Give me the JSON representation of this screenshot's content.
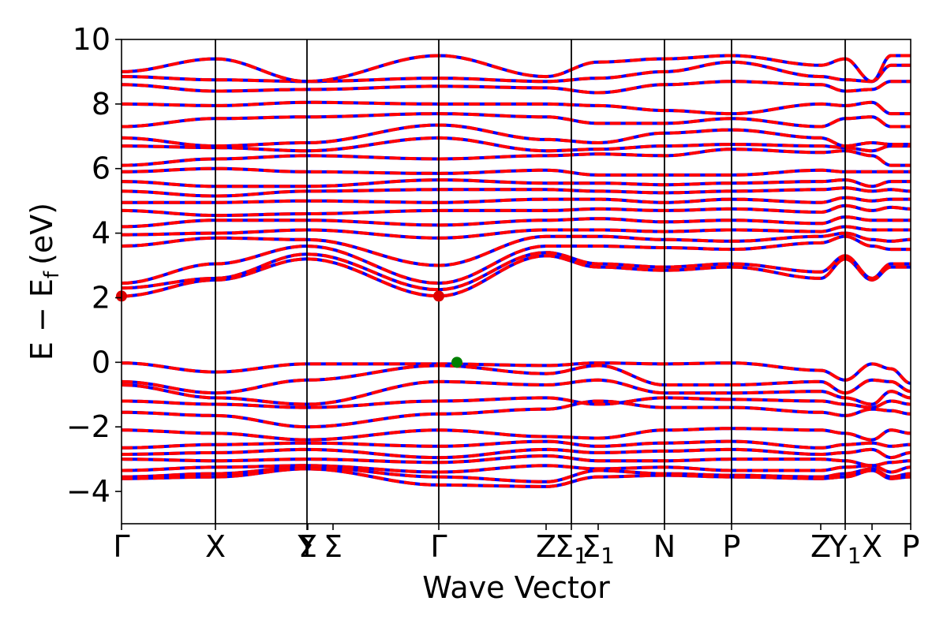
{
  "chart_data": {
    "type": "line",
    "xlabel": "Wave Vector",
    "ylabel": "E − E",
    "ylabel_sub": "f",
    "ylabel_unit": "(eV)",
    "ylim": [
      -5,
      10
    ],
    "y_ticks": [
      -4,
      -2,
      0,
      2,
      4,
      6,
      8,
      10
    ],
    "y_tick_labels": [
      "−4",
      "−2",
      "0",
      "2",
      "4",
      "6",
      "8",
      "10"
    ],
    "grid": false,
    "high_symmetry_path": [
      {
        "label": "Γ",
        "sub": "",
        "x": 0.0
      },
      {
        "label": "X",
        "sub": "",
        "x": 0.119
      },
      {
        "label": "Y",
        "sub": "",
        "x": 0.235
      },
      {
        "label": "Σ",
        "sub": "",
        "x": 0.236
      },
      {
        "label": "Σ",
        "sub": "",
        "x": 0.268
      },
      {
        "label": "Γ",
        "sub": "",
        "x": 0.402
      },
      {
        "label": "Z",
        "sub": "",
        "x": 0.538
      },
      {
        "label": "Σ",
        "sub": "1",
        "x": 0.57
      },
      {
        "label": "Σ",
        "sub": "1",
        "x": 0.604
      },
      {
        "label": "N",
        "sub": "",
        "x": 0.688
      },
      {
        "label": "P",
        "sub": "",
        "x": 0.773
      },
      {
        "label": "Z",
        "sub": "",
        "x": 0.886
      },
      {
        "label": "Y",
        "sub": "1",
        "x": 0.917
      },
      {
        "label": "X",
        "sub": "",
        "x": 0.951
      },
      {
        "label": "P",
        "sub": "",
        "x": 1.0
      }
    ],
    "vertical_lines_at": [
      0.119,
      0.235,
      0.402,
      0.57,
      0.688,
      0.773,
      0.917
    ],
    "segment_breaks": [
      0.917
    ],
    "series": [
      {
        "color": "#0000ff",
        "style": "solid"
      },
      {
        "color": "#ff0000",
        "style": "dashed"
      }
    ],
    "bands": {
      "valence_at_knots": [
        [
          -0.02,
          -0.3,
          -0.05,
          -0.05,
          -0.1,
          -0.02,
          -0.05,
          -0.02,
          -0.25,
          -0.55,
          -0.05,
          -0.2,
          -0.65
        ],
        [
          -0.6,
          -0.95,
          -0.55,
          -0.1,
          -0.35,
          -0.1,
          -0.7,
          -0.7,
          -0.6,
          -0.95,
          -0.55,
          -0.6,
          -0.9
        ],
        [
          -0.7,
          -1.1,
          -1.3,
          -0.6,
          -0.7,
          -0.55,
          -0.95,
          -0.95,
          -0.9,
          -1.1,
          -1.3,
          -0.9,
          -1.1
        ],
        [
          -1.2,
          -1.3,
          -1.4,
          -1.2,
          -1.1,
          -1.3,
          -1.1,
          -1.15,
          -1.2,
          -1.3,
          -1.4,
          -1.2,
          -1.3
        ],
        [
          -1.55,
          -1.65,
          -2.0,
          -1.6,
          -1.45,
          -1.2,
          -1.4,
          -1.4,
          -1.55,
          -1.65,
          -1.45,
          -1.5,
          -1.6
        ],
        [
          -2.1,
          -2.2,
          -2.4,
          -2.1,
          -2.3,
          -2.35,
          -2.1,
          -2.05,
          -2.1,
          -2.2,
          -2.4,
          -2.1,
          -2.2
        ],
        [
          -2.65,
          -2.55,
          -2.5,
          -2.6,
          -2.45,
          -2.6,
          -2.5,
          -2.45,
          -2.65,
          -2.55,
          -2.5,
          -2.6,
          -2.55
        ],
        [
          -2.85,
          -2.8,
          -2.7,
          -2.95,
          -2.7,
          -2.8,
          -2.75,
          -2.7,
          -2.85,
          -2.8,
          -2.7,
          -2.95,
          -2.8
        ],
        [
          -3.0,
          -3.05,
          -3.0,
          -3.1,
          -2.9,
          -3.05,
          -3.05,
          -3.0,
          -3.0,
          -3.05,
          -3.2,
          -3.1,
          -3.05
        ],
        [
          -3.35,
          -3.25,
          -3.2,
          -3.4,
          -3.2,
          -3.3,
          -3.25,
          -3.35,
          -3.35,
          -3.25,
          -3.2,
          -3.4,
          -3.25
        ],
        [
          -3.55,
          -3.45,
          -3.25,
          -3.55,
          -3.7,
          -3.35,
          -3.45,
          -3.5,
          -3.55,
          -3.45,
          -3.3,
          -3.55,
          -3.45
        ],
        [
          -3.6,
          -3.55,
          -3.3,
          -3.8,
          -3.85,
          -3.55,
          -3.5,
          -3.55,
          -3.6,
          -3.55,
          -3.35,
          -3.6,
          -3.55
        ]
      ],
      "conduction_at_knots": [
        [
          2.05,
          2.55,
          3.2,
          2.05,
          3.3,
          2.95,
          2.85,
          2.95,
          2.6,
          3.2,
          2.55,
          2.95,
          2.95
        ],
        [
          2.3,
          2.6,
          3.35,
          2.25,
          3.4,
          3.05,
          2.95,
          3.05,
          2.8,
          3.3,
          2.6,
          3.05,
          3.05
        ],
        [
          2.45,
          3.05,
          3.6,
          2.45,
          3.6,
          3.6,
          3.55,
          3.5,
          3.7,
          3.9,
          3.6,
          3.5,
          3.5
        ],
        [
          3.6,
          3.85,
          3.8,
          3.0,
          3.9,
          3.9,
          3.8,
          3.75,
          3.9,
          4.0,
          3.8,
          3.75,
          3.8
        ],
        [
          3.95,
          4.0,
          4.1,
          3.85,
          4.1,
          4.1,
          4.05,
          4.1,
          4.05,
          4.2,
          4.1,
          4.1,
          4.1
        ],
        [
          4.2,
          4.4,
          4.4,
          4.25,
          4.4,
          4.45,
          4.35,
          4.4,
          4.3,
          4.5,
          4.4,
          4.4,
          4.4
        ],
        [
          4.7,
          4.55,
          4.6,
          4.7,
          4.7,
          4.75,
          4.7,
          4.75,
          4.65,
          4.85,
          4.7,
          4.8,
          4.75
        ],
        [
          4.95,
          4.95,
          5.0,
          4.95,
          5.05,
          5.05,
          4.95,
          5.05,
          4.95,
          5.1,
          5.0,
          5.05,
          5.05
        ],
        [
          5.3,
          5.15,
          5.3,
          5.35,
          5.35,
          5.3,
          5.25,
          5.3,
          5.35,
          5.4,
          5.3,
          5.35,
          5.3
        ],
        [
          5.6,
          5.45,
          5.45,
          5.65,
          5.55,
          5.55,
          5.5,
          5.55,
          5.6,
          5.65,
          5.45,
          5.6,
          5.6
        ],
        [
          5.9,
          6.0,
          5.9,
          5.85,
          5.95,
          5.8,
          5.8,
          5.8,
          5.95,
          5.9,
          5.9,
          5.9,
          5.9
        ],
        [
          6.1,
          6.3,
          6.4,
          6.3,
          6.4,
          6.45,
          6.4,
          6.6,
          6.5,
          6.55,
          6.4,
          6.1,
          6.1
        ],
        [
          6.7,
          6.65,
          6.55,
          6.95,
          6.55,
          6.6,
          6.7,
          6.75,
          6.7,
          6.65,
          6.55,
          6.7,
          6.7
        ],
        [
          6.95,
          6.7,
          6.8,
          7.35,
          6.9,
          6.8,
          7.1,
          7.2,
          6.95,
          6.7,
          6.8,
          6.75,
          6.75
        ],
        [
          7.3,
          7.55,
          7.6,
          7.7,
          7.6,
          7.4,
          7.4,
          7.55,
          7.3,
          7.55,
          7.6,
          7.3,
          7.3
        ],
        [
          8.0,
          7.95,
          8.05,
          8.0,
          8.0,
          7.95,
          7.8,
          7.7,
          8.0,
          7.95,
          8.05,
          7.7,
          7.7
        ],
        [
          8.6,
          8.4,
          8.45,
          8.55,
          8.5,
          8.35,
          8.6,
          8.7,
          8.6,
          8.4,
          8.45,
          8.7,
          8.7
        ],
        [
          8.85,
          8.75,
          8.7,
          8.8,
          8.7,
          8.8,
          9.0,
          9.3,
          8.85,
          8.75,
          8.7,
          9.2,
          9.2
        ],
        [
          9.0,
          9.4,
          8.7,
          9.5,
          8.85,
          9.3,
          9.4,
          9.5,
          9.2,
          9.4,
          8.7,
          9.5,
          9.5
        ]
      ],
      "knot_x": [
        0.0,
        0.119,
        0.235,
        0.402,
        0.538,
        0.604,
        0.688,
        0.773,
        0.886,
        0.917,
        0.951,
        0.975,
        1.0
      ]
    },
    "markers": [
      {
        "x": 0.0,
        "y": 2.05,
        "color": "#dd0000",
        "name": "cbm-marker"
      },
      {
        "x": 0.402,
        "y": 2.05,
        "color": "#dd0000",
        "name": "cbm-marker"
      },
      {
        "x": 0.425,
        "y": 0.0,
        "color": "#008000",
        "name": "vbm-marker"
      }
    ]
  }
}
